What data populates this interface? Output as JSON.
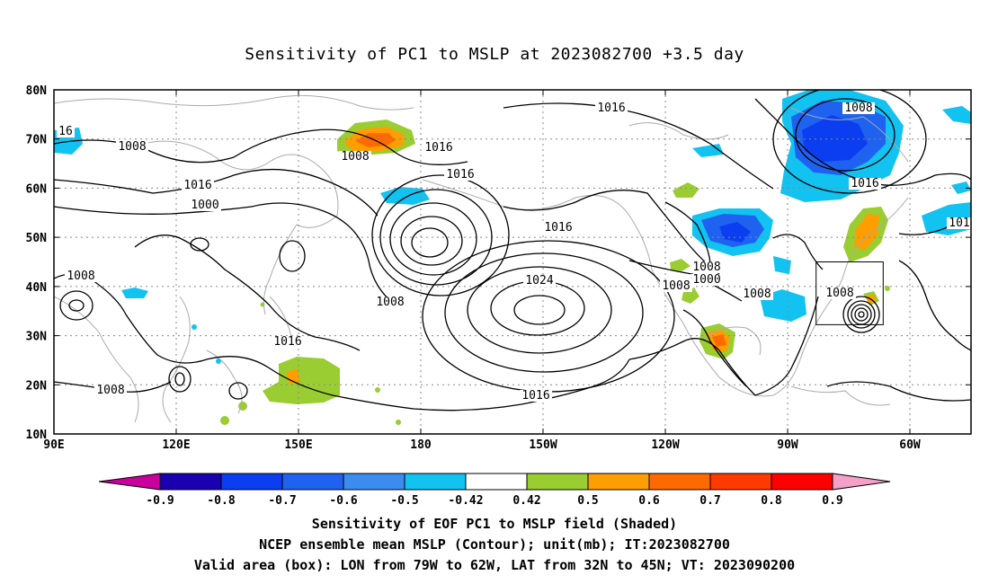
{
  "title": "Sensitivity of PC1 to MSLP at 2023082700 +3.5 day",
  "lat_labels": [
    "80N",
    "70N",
    "60N",
    "50N",
    "40N",
    "30N",
    "20N",
    "10N"
  ],
  "lon_labels": [
    "90E",
    "120E",
    "150E",
    "180",
    "150W",
    "120W",
    "90W",
    "60W"
  ],
  "contour_labels": [
    "16",
    "1008",
    "1008",
    "1016",
    "1016",
    "1000",
    "1016",
    "1008",
    "1016",
    "1024",
    "1008",
    "1016",
    "1008",
    "1016",
    "1016",
    "1008",
    "1008",
    "1000",
    "1008",
    "1008",
    "1016",
    "101",
    "1008"
  ],
  "colorbar": {
    "ticks": [
      "-0.9",
      "-0.8",
      "-0.7",
      "-0.6",
      "-0.5",
      "-0.42",
      "0.42",
      "0.5",
      "0.6",
      "0.7",
      "0.8",
      "0.9"
    ],
    "colors": [
      "#c9009c",
      "#1a00b0",
      "#0a3ef0",
      "#1f62f0",
      "#3c8cf0",
      "#12c2f0",
      "#ffffff",
      "#9acd32",
      "#ff9e00",
      "#ff6a00",
      "#ff3a00",
      "#ff0000",
      "#f5a0c8"
    ]
  },
  "valid_box": {
    "lon_west": -79,
    "lon_east": -62,
    "lat_south": 32,
    "lat_north": 45
  },
  "footer": [
    "Sensitivity of EOF PC1 to MSLP field (Shaded)",
    "NCEP ensemble mean MSLP (Contour); unit(mb); IT:2023082700",
    "Valid area (box): LON from 79W to 62W, LAT from 32N to 45N; VT: 2023090200"
  ]
}
